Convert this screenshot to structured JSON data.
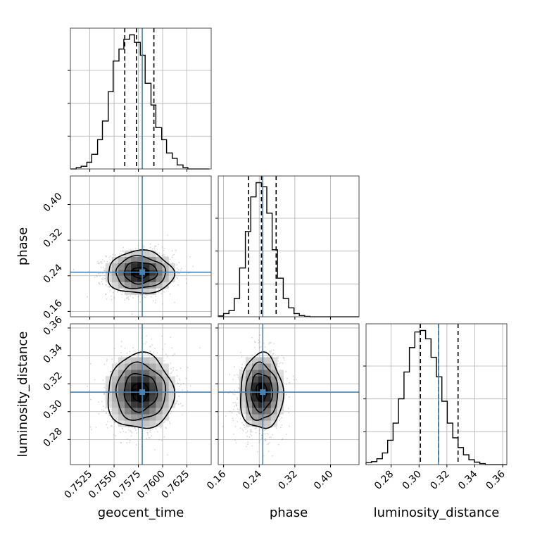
{
  "chart_data": {
    "type": "corner",
    "title": "",
    "truth_color": "#4682b4",
    "grid": true,
    "parameters": [
      {
        "key": "geocent_time",
        "label": "geocent_time",
        "range": [
          0.7505,
          0.765
        ],
        "ticks": [
          0.7525,
          0.755,
          0.7575,
          0.76,
          0.7625
        ],
        "tick_labels": [
          "0.7525",
          "0.7550",
          "0.7575",
          "0.7600",
          "0.7625"
        ],
        "truth": 0.7579,
        "quantiles": [
          0.7561,
          0.7573,
          0.7591
        ],
        "hist_bin_edges": [
          0.7505,
          0.7511,
          0.7516,
          0.7522,
          0.7527,
          0.7533,
          0.7538,
          0.7544,
          0.7549,
          0.7555,
          0.756,
          0.7566,
          0.7571,
          0.7577,
          0.7582,
          0.7588,
          0.7593,
          0.7599,
          0.7604,
          0.761,
          0.7615,
          0.7621,
          0.7626,
          0.7632,
          0.7637,
          0.7643,
          0.7648
        ],
        "hist_counts": [
          0,
          3,
          6,
          15,
          33,
          66,
          108,
          174,
          243,
          270,
          292,
          302,
          285,
          256,
          193,
          144,
          93,
          66,
          36,
          24,
          9,
          3,
          0,
          0,
          0,
          0
        ]
      },
      {
        "key": "phase",
        "label": "phase",
        "range": [
          0.148,
          0.464
        ],
        "ticks": [
          0.16,
          0.24,
          0.32,
          0.4
        ],
        "tick_labels": [
          "0.16",
          "0.24",
          "0.32",
          "0.40"
        ],
        "truth": 0.248,
        "quantiles": [
          0.216,
          0.245,
          0.278
        ],
        "hist_bin_edges": [
          0.148,
          0.16,
          0.172,
          0.184,
          0.196,
          0.209,
          0.221,
          0.233,
          0.245,
          0.257,
          0.269,
          0.281,
          0.294,
          0.306,
          0.318,
          0.33,
          0.342,
          0.354,
          0.366,
          0.379,
          0.391,
          0.403,
          0.415,
          0.427,
          0.439,
          0.451,
          0.464
        ],
        "hist_counts": [
          2,
          8,
          15,
          45,
          120,
          210,
          295,
          330,
          320,
          255,
          165,
          95,
          45,
          22,
          8,
          3,
          1,
          0,
          0,
          0,
          0,
          0,
          0,
          0,
          0,
          0
        ]
      },
      {
        "key": "luminosity_distance",
        "label": "luminosity_distance",
        "range": [
          0.262,
          0.363
        ],
        "ticks": [
          0.28,
          0.3,
          0.32,
          0.34,
          0.36
        ],
        "tick_labels": [
          "0.28",
          "0.30",
          "0.32",
          "0.34",
          "0.36"
        ],
        "truth": 0.314,
        "quantiles": [
          0.301,
          0.314,
          0.328
        ],
        "hist_bin_edges": [
          0.262,
          0.2659,
          0.2698,
          0.2737,
          0.2775,
          0.2814,
          0.2853,
          0.2892,
          0.2931,
          0.297,
          0.3008,
          0.3047,
          0.3086,
          0.3125,
          0.3164,
          0.3203,
          0.3242,
          0.328,
          0.3319,
          0.3358,
          0.3397,
          0.3436,
          0.3475,
          0.3513,
          0.3552,
          0.3591,
          0.363
        ],
        "hist_counts": [
          4,
          6,
          12,
          24,
          50,
          85,
          135,
          190,
          240,
          272,
          275,
          258,
          220,
          180,
          130,
          85,
          55,
          35,
          20,
          10,
          5,
          2,
          0,
          0,
          0,
          0
        ]
      }
    ],
    "pairs": [
      {
        "x": "geocent_time",
        "y": "phase",
        "center": [
          0.7577,
          0.247
        ],
        "sigma": [
          0.0017,
          0.024
        ],
        "correlation": 0.05
      },
      {
        "x": "geocent_time",
        "y": "luminosity_distance",
        "center": [
          0.7577,
          0.314
        ],
        "sigma": [
          0.0017,
          0.0135
        ],
        "correlation": 0.05
      },
      {
        "x": "phase",
        "y": "luminosity_distance",
        "center": [
          0.245,
          0.314
        ],
        "sigma": [
          0.024,
          0.0135
        ],
        "correlation": 0.1
      }
    ]
  }
}
